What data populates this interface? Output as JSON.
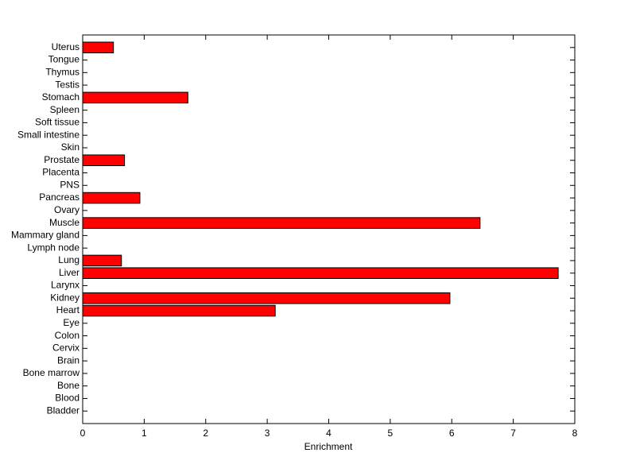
{
  "chart_data": {
    "type": "barh",
    "xlabel": "Enrichment",
    "categories": [
      "Bladder",
      "Blood",
      "Bone",
      "Bone marrow",
      "Brain",
      "Cervix",
      "Colon",
      "Eye",
      "Heart",
      "Kidney",
      "Larynx",
      "Liver",
      "Lung",
      "Lymph node",
      "Mammary gland",
      "Muscle",
      "Ovary",
      "Pancreas",
      "PNS",
      "Placenta",
      "Prostate",
      "Skin",
      "Small intestine",
      "Soft tissue",
      "Spleen",
      "Stomach",
      "Testis",
      "Thymus",
      "Tongue",
      "Uterus"
    ],
    "values": [
      0,
      0,
      0,
      0,
      0,
      0,
      0,
      0,
      3.13,
      5.97,
      0,
      7.73,
      0.63,
      0,
      0,
      6.46,
      0,
      0.93,
      0,
      0,
      0.68,
      0,
      0,
      0,
      0,
      1.71,
      0,
      0,
      0,
      0.5
    ],
    "color": "#ff0000",
    "xlim": [
      0,
      8
    ],
    "xticks": [
      0,
      1,
      2,
      3,
      4,
      5,
      6,
      7,
      8
    ]
  }
}
